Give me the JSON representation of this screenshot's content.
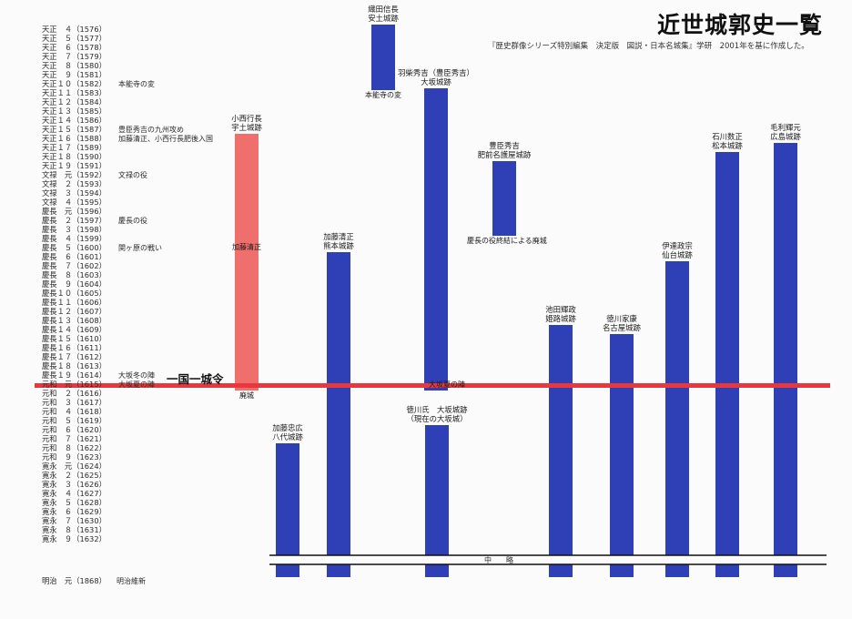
{
  "title": "近世城郭史一覧",
  "subtitle": "『歴史群像シリーズ特別編集　決定版　図説・日本名城集』学研　2001年を基に作成した。",
  "colors": {
    "blue": "#2f3fb5",
    "red_bar": "#ee6f6c",
    "red_line": "#e8383d",
    "ink": "#111111"
  },
  "chart_data": {
    "type": "bar",
    "orientation": "vertical-timeline",
    "xlabel": "",
    "ylabel": "",
    "y_axis_labels": [
      "天正　４（1576）",
      "天正　５（1577）",
      "天正　６（1578）",
      "天正　７（1579）",
      "天正　８（1580）",
      "天正　９（1581）",
      "天正１０（1582）",
      "天正１１（1583）",
      "天正１２（1584）",
      "天正１３（1585）",
      "天正１４（1586）",
      "天正１５（1587）",
      "天正１６（1588）",
      "天正１７（1589）",
      "天正１８（1590）",
      "天正１９（1591）",
      "文禄　元（1592）",
      "文禄　２（1593）",
      "文禄　３（1594）",
      "文禄　４（1595）",
      "慶長　元（1596）",
      "慶長　２（1597）",
      "慶長　３（1598）",
      "慶長　４（1599）",
      "慶長　５（1600）",
      "慶長　６（1601）",
      "慶長　７（1602）",
      "慶長　８（1603）",
      "慶長　９（1604）",
      "慶長１０（1605）",
      "慶長１１（1606）",
      "慶長１２（1607）",
      "慶長１３（1608）",
      "慶長１４（1609）",
      "慶長１５（1610）",
      "慶長１６（1611）",
      "慶長１７（1612）",
      "慶長１８（1613）",
      "慶長１９（1614）",
      "元和　元（1615）",
      "元和　２（1616）",
      "元和　３（1617）",
      "元和　４（1618）",
      "元和　５（1619）",
      "元和　６（1620）",
      "元和　７（1621）",
      "元和　８（1622）",
      "元和　９（1623）",
      "寛永　元（1624）",
      "寛永　２（1625）",
      "寛永　３（1626）",
      "寛永　４（1627）",
      "寛永　５（1628）",
      "寛永　６（1629）",
      "寛永　７（1630）",
      "寛永　８（1631）",
      "寛永　９（1632）"
    ],
    "last_label": "明治　元（1868）",
    "last_event": "明治維新",
    "y_range": [
      1576,
      1632
    ],
    "events": [
      {
        "year": 1582,
        "text": "本能寺の変"
      },
      {
        "year": 1587,
        "text": "豊臣秀吉の九州攻め"
      },
      {
        "year": 1588,
        "text": "加藤清正、小西行長肥後入国"
      },
      {
        "year": 1592,
        "text": "文禄の役"
      },
      {
        "year": 1597,
        "text": "慶長の役"
      },
      {
        "year": 1600,
        "text": "関ヶ原の戦い"
      },
      {
        "year": 1614,
        "text": "大坂冬の陣"
      },
      {
        "year": 1615,
        "text": "大坂夏の陣"
      }
    ],
    "edict": {
      "year": 1615,
      "label": "一国一城令"
    },
    "break_label": "中　　略",
    "series": [
      {
        "label": [
          "織田信長",
          "安土城跡"
        ],
        "start": 1576,
        "end": 1582,
        "color": "blue",
        "end_note": "本能寺の変"
      },
      {
        "label": [
          "小西行長",
          "宇土城跡"
        ],
        "start": 1588,
        "end": 1615,
        "color": "red",
        "mid_note": "加藤清正",
        "end_note": "廃城"
      },
      {
        "label": [
          "羽柴秀吉（豊臣秀吉）",
          "大坂城跡"
        ],
        "start": 1583,
        "end": 1615,
        "color": "blue",
        "end_note": "大坂夏の陣"
      },
      {
        "label": [
          "豊臣秀吉",
          "肥前名護屋城跡"
        ],
        "start": 1591,
        "end": 1598,
        "color": "blue",
        "end_note": "慶長の役終結による廃城"
      },
      {
        "label": [
          "加藤清正",
          "熊本城跡"
        ],
        "start": 1601,
        "end": 1633,
        "color": "blue"
      },
      {
        "label": [
          "加藤忠広",
          "八代城跡"
        ],
        "start": 1622,
        "end": 1633,
        "color": "blue"
      },
      {
        "label": [
          "徳川氏　大坂城跡",
          "（現在の大坂城）"
        ],
        "start": 1620,
        "end": 1633,
        "color": "blue"
      },
      {
        "label": [
          "池田輝政",
          "姫路城跡"
        ],
        "start": 1609,
        "end": 1633,
        "color": "blue"
      },
      {
        "label": [
          "徳川家康",
          "名古屋城跡"
        ],
        "start": 1610,
        "end": 1633,
        "color": "blue"
      },
      {
        "label": [
          "伊達政宗",
          "仙台城跡"
        ],
        "start": 1602,
        "end": 1633,
        "color": "blue"
      },
      {
        "label": [
          "石川数正",
          "松本城跡"
        ],
        "start": 1590,
        "end": 1633,
        "color": "blue"
      },
      {
        "label": [
          "毛利輝元",
          "広島城跡"
        ],
        "start": 1589,
        "end": 1633,
        "color": "blue"
      }
    ]
  }
}
